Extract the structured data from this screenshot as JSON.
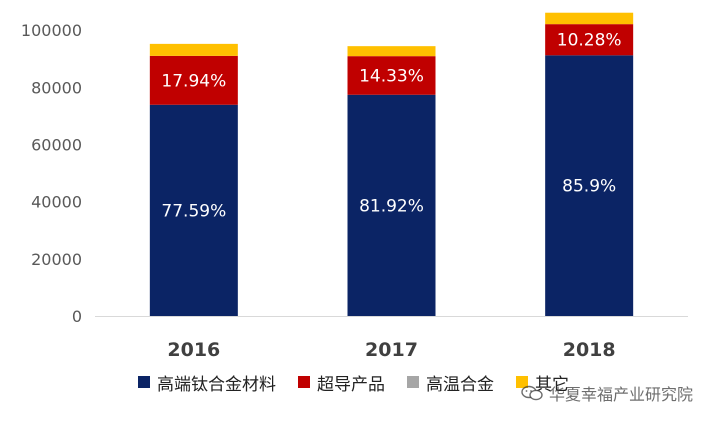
{
  "chart_data": {
    "type": "bar",
    "stacked": true,
    "categories": [
      "2016",
      "2017",
      "2018"
    ],
    "series": [
      {
        "name": "高端钛合金材料",
        "color": "#0b2465",
        "values": [
          73900,
          77400,
          91200
        ],
        "labels": [
          "77.59%",
          "81.92%",
          "85.9%"
        ]
      },
      {
        "name": "超导产品",
        "color": "#c00000",
        "values": [
          17100,
          13500,
          10900
        ],
        "labels": [
          "17.94%",
          "14.33%",
          "10.28%"
        ]
      },
      {
        "name": "高温合金",
        "color": "#a6a6a6",
        "values": [
          0,
          0,
          0
        ],
        "labels": [
          "",
          "",
          ""
        ]
      },
      {
        "name": "其它",
        "color": "#ffc000",
        "values": [
          4200,
          3500,
          4000
        ],
        "labels": [
          "",
          "",
          ""
        ]
      }
    ],
    "yticks": [
      "0",
      "20000",
      "40000",
      "60000",
      "80000",
      "100000"
    ],
    "ylim": [
      0,
      106000
    ],
    "grid": false,
    "legend": "bottom"
  },
  "watermark": "华夏幸福产业研究院"
}
